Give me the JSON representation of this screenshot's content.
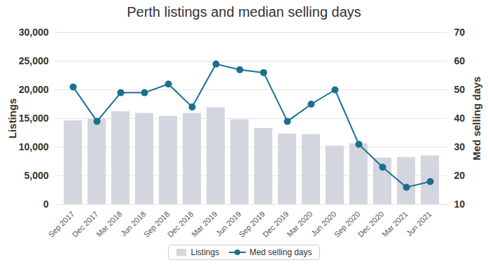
{
  "chart_data": {
    "type": "bar",
    "title": "Perth listings and median selling days",
    "categories": [
      "Sep 2017",
      "Dec 2017",
      "Mar 2018",
      "Jun 2018",
      "Sep 2018",
      "Dec 2018",
      "Mar 2019",
      "Jun 2019",
      "Sep 2019",
      "Dec 2019",
      "Mar 2020",
      "Jun 2020",
      "Sep 2020",
      "Dec 2020",
      "Mar 2021",
      "Jun 2021"
    ],
    "series": [
      {
        "name": "Listings",
        "type": "bar",
        "color": "#d3d6de",
        "values": [
          14600,
          14900,
          16200,
          15900,
          15400,
          15900,
          16900,
          14800,
          13300,
          12300,
          12200,
          10200,
          10600,
          8100,
          8200,
          8500
        ]
      },
      {
        "name": "Med selling days",
        "type": "line",
        "axis": "y2",
        "marker": "circle",
        "color": "#1a6f91",
        "values": [
          51,
          39,
          49,
          49,
          52,
          44,
          59,
          57,
          56,
          39,
          45,
          50,
          31,
          23,
          16,
          18
        ]
      }
    ],
    "y_label": "Listings",
    "y2_label": "Med selling days",
    "ylim": [
      0,
      30000
    ],
    "yticks": [
      0,
      {
        "value": 5000,
        "label": "5,000"
      },
      {
        "value": 10000,
        "label": "10,000"
      },
      {
        "value": 15000,
        "label": "15,000"
      },
      {
        "value": 20000,
        "label": "20,000"
      },
      {
        "value": 25000,
        "label": "25,000"
      },
      {
        "value": 30000,
        "label": "30,000"
      }
    ],
    "y2lim": [
      10,
      70
    ],
    "y2ticks": [
      10,
      20,
      30,
      40,
      50,
      60,
      70
    ],
    "grid": true,
    "legend": "bottom"
  }
}
